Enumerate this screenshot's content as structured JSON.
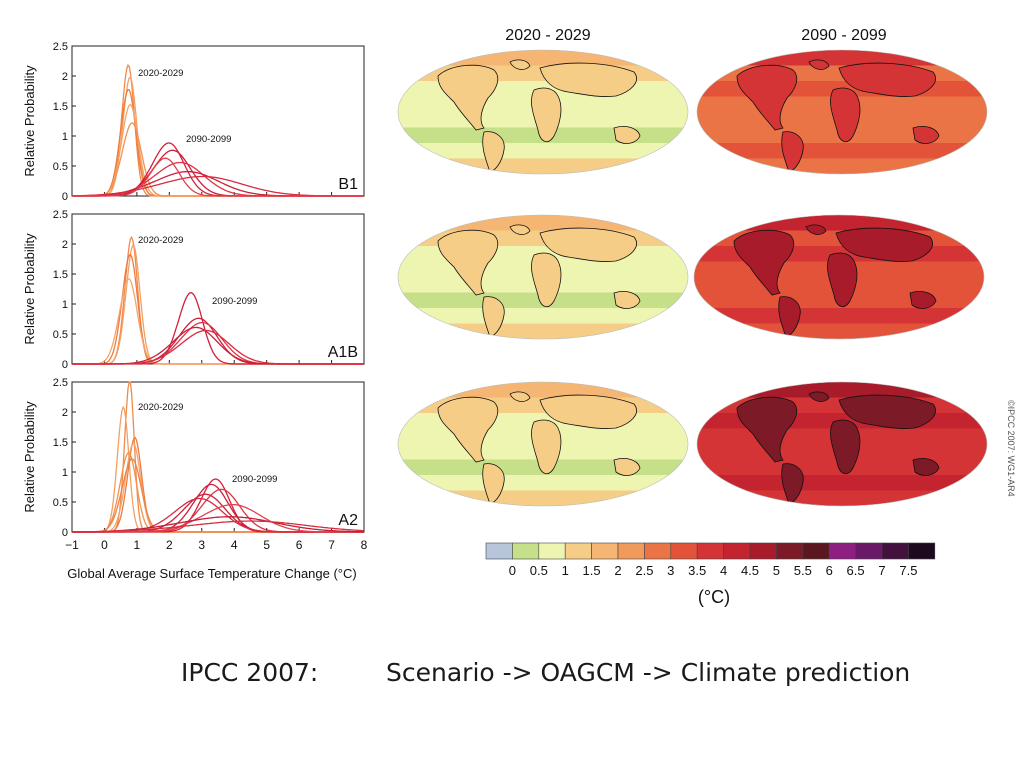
{
  "slide": {
    "caption_left": "IPCC 2007:",
    "caption_right": "Scenario -> OAGCM -> Climate prediction",
    "credit": "©IPCC 2007: WG1-AR4"
  },
  "maps": {
    "col_titles": [
      "2020 - 2029",
      "2090 - 2099"
    ]
  },
  "colorbar": {
    "ticks": [
      "0",
      "0.5",
      "1",
      "1.5",
      "2",
      "2.5",
      "3",
      "3.5",
      "4",
      "4.5",
      "5",
      "5.5",
      "6",
      "6.5",
      "7",
      "7.5"
    ],
    "colors": [
      "#b8c6dc",
      "#c6e08a",
      "#eef5b0",
      "#f6cd86",
      "#f4b672",
      "#f09a5c",
      "#ea7445",
      "#e2533a",
      "#d43435",
      "#c4242f",
      "#a71b2a",
      "#7c1a27",
      "#5a1720",
      "#8e1f80",
      "#6a1868",
      "#42113e",
      "#1e0a1e"
    ],
    "unit": "(°C)"
  },
  "chart_data": [
    {
      "type": "line",
      "scenario": "B1",
      "xlabel": "Global Average Surface Temperature Change (°C)",
      "ylabel": "Relative Probability",
      "xlim": [
        -1,
        8
      ],
      "ylim": [
        0,
        2.5
      ],
      "xticks": [
        "-1",
        "0",
        "1",
        "2",
        "3",
        "4",
        "5",
        "6",
        "7",
        "8"
      ],
      "yticks": [
        "0",
        "0.5",
        "1",
        "1.5",
        "2",
        "2.5"
      ],
      "annotations": [
        "2020-2029",
        "2090-2099"
      ],
      "series_2020_2029": [
        {
          "mu": 0.7,
          "peak": 2.15,
          "w": 0.2
        },
        {
          "mu": 0.75,
          "peak": 1.95,
          "w": 0.22
        },
        {
          "mu": 0.7,
          "peak": 1.75,
          "w": 0.24
        },
        {
          "mu": 0.75,
          "peak": 1.5,
          "w": 0.26
        },
        {
          "mu": 0.8,
          "peak": 1.2,
          "w": 0.3
        }
      ],
      "series_2090_2099": [
        {
          "mu": 1.9,
          "peak": 0.87,
          "w": 0.5
        },
        {
          "mu": 2.0,
          "peak": 0.75,
          "w": 0.58
        },
        {
          "mu": 2.2,
          "peak": 0.55,
          "w": 0.78
        },
        {
          "mu": 2.4,
          "peak": 0.4,
          "w": 1.0
        },
        {
          "mu": 2.8,
          "peak": 0.32,
          "w": 1.3
        },
        {
          "mu": 1.8,
          "peak": 0.62,
          "w": 0.45
        }
      ]
    },
    {
      "type": "line",
      "scenario": "A1B",
      "xlabel": "Global Average Surface Temperature Change (°C)",
      "ylabel": "Relative Probability",
      "xlim": [
        -1,
        8
      ],
      "ylim": [
        0,
        2.5
      ],
      "xticks": [
        "-1",
        "0",
        "1",
        "2",
        "3",
        "4",
        "5",
        "6",
        "7",
        "8"
      ],
      "yticks": [
        "0",
        "0.5",
        "1",
        "1.5",
        "2",
        "2.5"
      ],
      "annotations": [
        "2020-2029",
        "2090-2099"
      ],
      "series_2020_2029": [
        {
          "mu": 0.8,
          "peak": 2.08,
          "w": 0.2
        },
        {
          "mu": 0.85,
          "peak": 1.95,
          "w": 0.22
        },
        {
          "mu": 0.75,
          "peak": 1.8,
          "w": 0.24
        },
        {
          "mu": 0.7,
          "peak": 1.4,
          "w": 0.28
        }
      ],
      "series_2090_2099": [
        {
          "mu": 2.6,
          "peak": 1.17,
          "w": 0.38
        },
        {
          "mu": 2.8,
          "peak": 0.75,
          "w": 0.6
        },
        {
          "mu": 2.9,
          "peak": 0.68,
          "w": 0.65
        },
        {
          "mu": 2.7,
          "peak": 0.6,
          "w": 0.7
        },
        {
          "mu": 3.0,
          "peak": 0.55,
          "w": 0.75
        }
      ]
    },
    {
      "type": "line",
      "scenario": "A2",
      "xlabel": "Global Average Surface Temperature Change (°C)",
      "ylabel": "Relative Probability",
      "xlim": [
        -1,
        8
      ],
      "ylim": [
        0,
        2.5
      ],
      "xticks": [
        "-1",
        "0",
        "1",
        "2",
        "3",
        "4",
        "5",
        "6",
        "7",
        "8"
      ],
      "yticks": [
        "0",
        "0.5",
        "1",
        "1.5",
        "2",
        "2.5"
      ],
      "annotations": [
        "2020-2029",
        "2090-2099"
      ],
      "series_2020_2029": [
        {
          "mu": 0.75,
          "peak": 2.5,
          "w": 0.15
        },
        {
          "mu": 0.55,
          "peak": 2.05,
          "w": 0.18
        },
        {
          "mu": 0.9,
          "peak": 1.55,
          "w": 0.22
        },
        {
          "mu": 0.85,
          "peak": 1.45,
          "w": 0.24
        },
        {
          "mu": 0.7,
          "peak": 1.3,
          "w": 0.26
        },
        {
          "mu": 0.8,
          "peak": 1.2,
          "w": 0.3
        }
      ],
      "series_2090_2099": [
        {
          "mu": 3.35,
          "peak": 0.87,
          "w": 0.45
        },
        {
          "mu": 3.2,
          "peak": 0.78,
          "w": 0.55
        },
        {
          "mu": 3.5,
          "peak": 0.7,
          "w": 0.6
        },
        {
          "mu": 3.0,
          "peak": 0.62,
          "w": 0.65
        },
        {
          "mu": 2.8,
          "peak": 0.55,
          "w": 0.75
        },
        {
          "mu": 3.8,
          "peak": 0.45,
          "w": 0.9
        },
        {
          "mu": 3.6,
          "peak": 0.25,
          "w": 1.5
        },
        {
          "mu": 4.2,
          "peak": 0.18,
          "w": 1.8
        }
      ]
    }
  ]
}
